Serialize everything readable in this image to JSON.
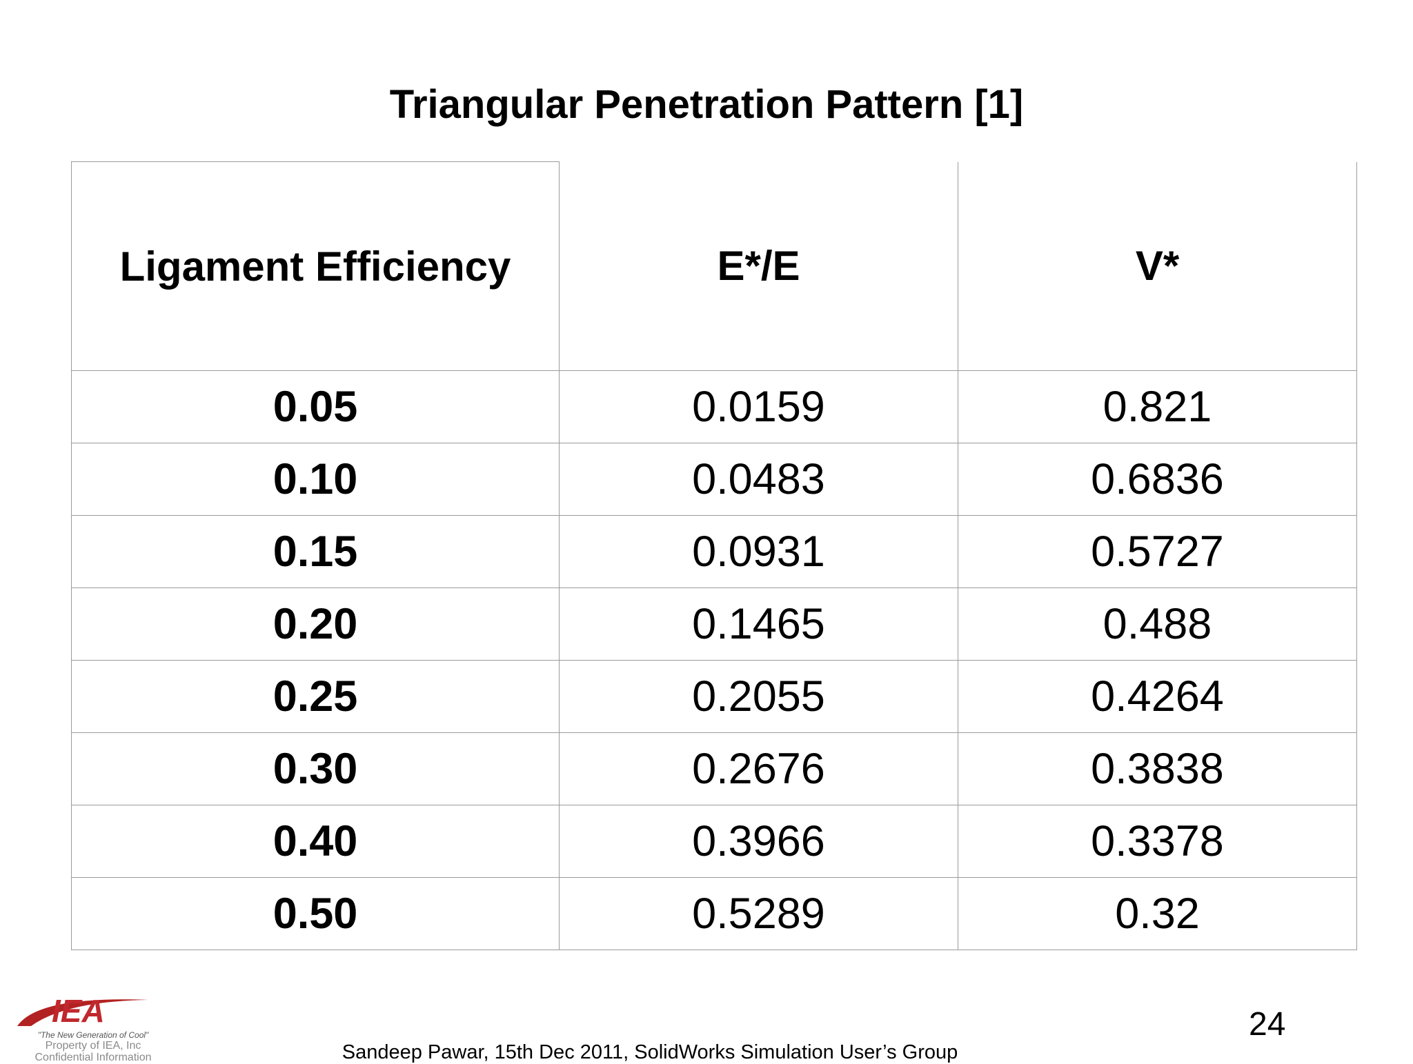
{
  "title": "Triangular Penetration Pattern [1]",
  "table": {
    "header": [
      "Ligament Efficiency",
      "E*/E",
      "V*"
    ],
    "rows": [
      [
        "0.05",
        "0.0159",
        "0.821"
      ],
      [
        "0.10",
        "0.0483",
        "0.6836"
      ],
      [
        "0.15",
        "0.0931",
        "0.5727"
      ],
      [
        "0.20",
        "0.1465",
        "0.488"
      ],
      [
        "0.25",
        "0.2055",
        "0.4264"
      ],
      [
        "0.30",
        "0.2676",
        "0.3838"
      ],
      [
        "0.40",
        "0.3966",
        "0.3378"
      ],
      [
        "0.50",
        "0.5289",
        "0.32"
      ]
    ]
  },
  "logo": {
    "mark": "IEA",
    "tagline": "\"The New Generation of Cool\"",
    "notice": [
      "Property of IEA, Inc",
      "Confidential Information"
    ]
  },
  "footer": {
    "credit": "Sandeep Pawar, 15th Dec 2011, SolidWorks Simulation User’s Group",
    "page_number": "24"
  }
}
